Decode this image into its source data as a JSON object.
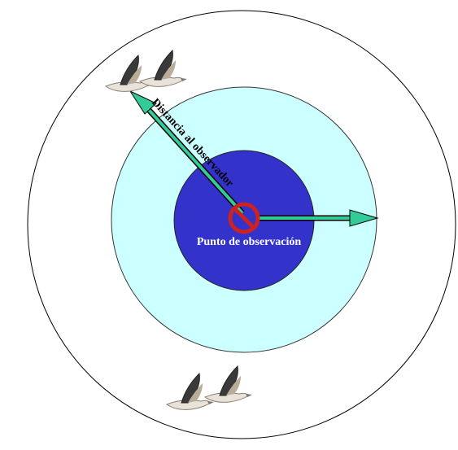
{
  "labels": {
    "distance": "Distancia al observador",
    "point": "Punto de observación"
  }
}
